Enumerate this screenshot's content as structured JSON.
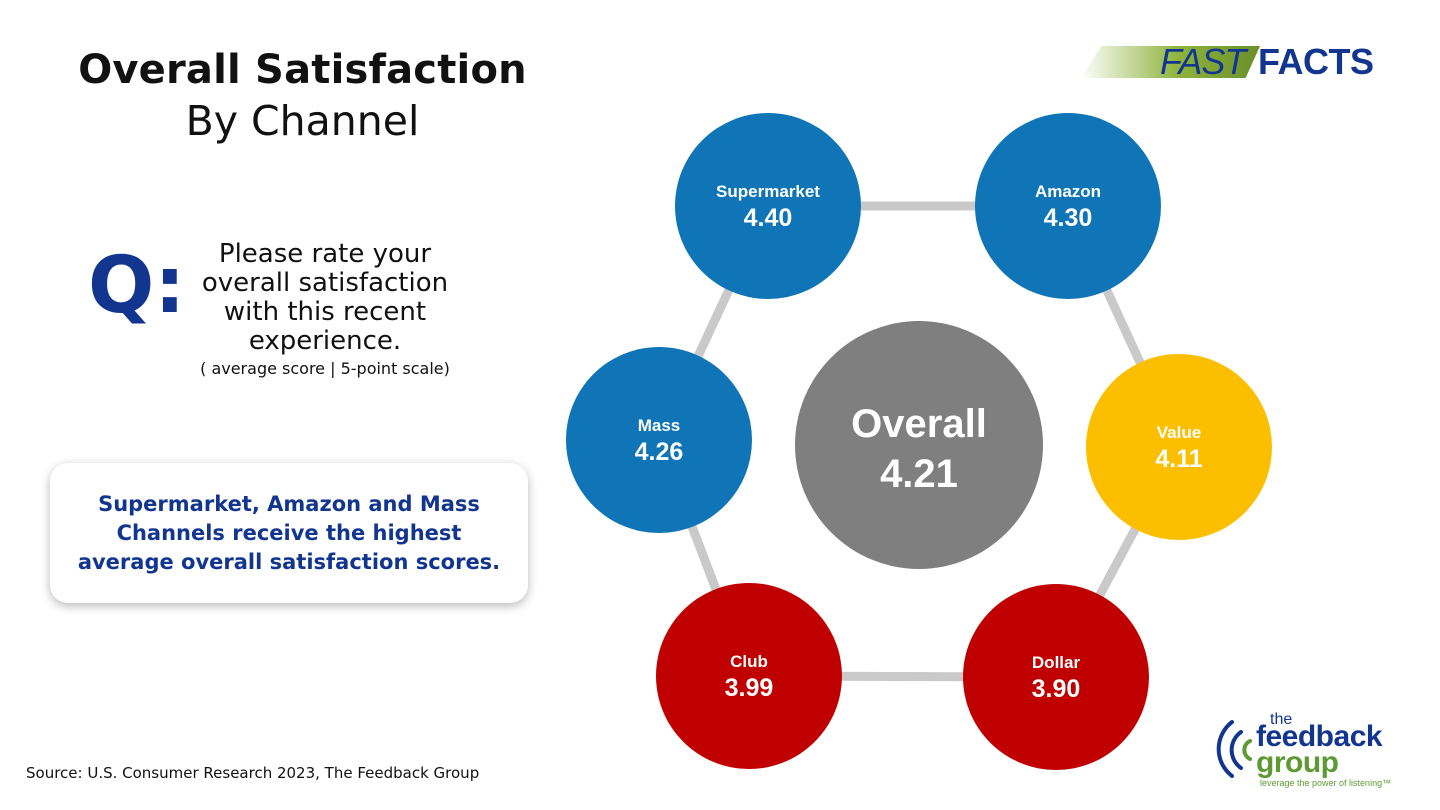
{
  "title": {
    "line1": "Overall Satisfaction",
    "line2": "By Channel"
  },
  "question": {
    "marker": "Q:",
    "text": "Please rate your overall satisfaction with this recent experience.",
    "note": "( average score | 5-point scale)"
  },
  "callout": "Supermarket, Amazon and Mass Channels receive the highest average overall satisfaction scores.",
  "source": "Source: U.S. Consumer Research 2023, The Feedback Group",
  "logos": {
    "fast": "FAST",
    "facts": "FACTS",
    "brand_the": "the",
    "brand_feedback": "feedback",
    "brand_group": "group",
    "brand_tagline": "leverage the power of listening™"
  },
  "colors": {
    "navy": "#12368f",
    "blue": "#0f75b6",
    "red": "#c00000",
    "gold": "#fbbf00",
    "gray": "#7f7f7f",
    "connector": "#c9c9c9",
    "green": "#5e9a34"
  },
  "hub": {
    "label": "Overall",
    "value": "4.21"
  },
  "channels": [
    {
      "name": "Supermarket",
      "value": "4.40",
      "color_key": "blue"
    },
    {
      "name": "Amazon",
      "value": "4.30",
      "color_key": "blue"
    },
    {
      "name": "Value",
      "value": "4.11",
      "color_key": "gold"
    },
    {
      "name": "Dollar",
      "value": "3.90",
      "color_key": "red"
    },
    {
      "name": "Club",
      "value": "3.99",
      "color_key": "red"
    },
    {
      "name": "Mass",
      "value": "4.26",
      "color_key": "blue"
    }
  ]
}
